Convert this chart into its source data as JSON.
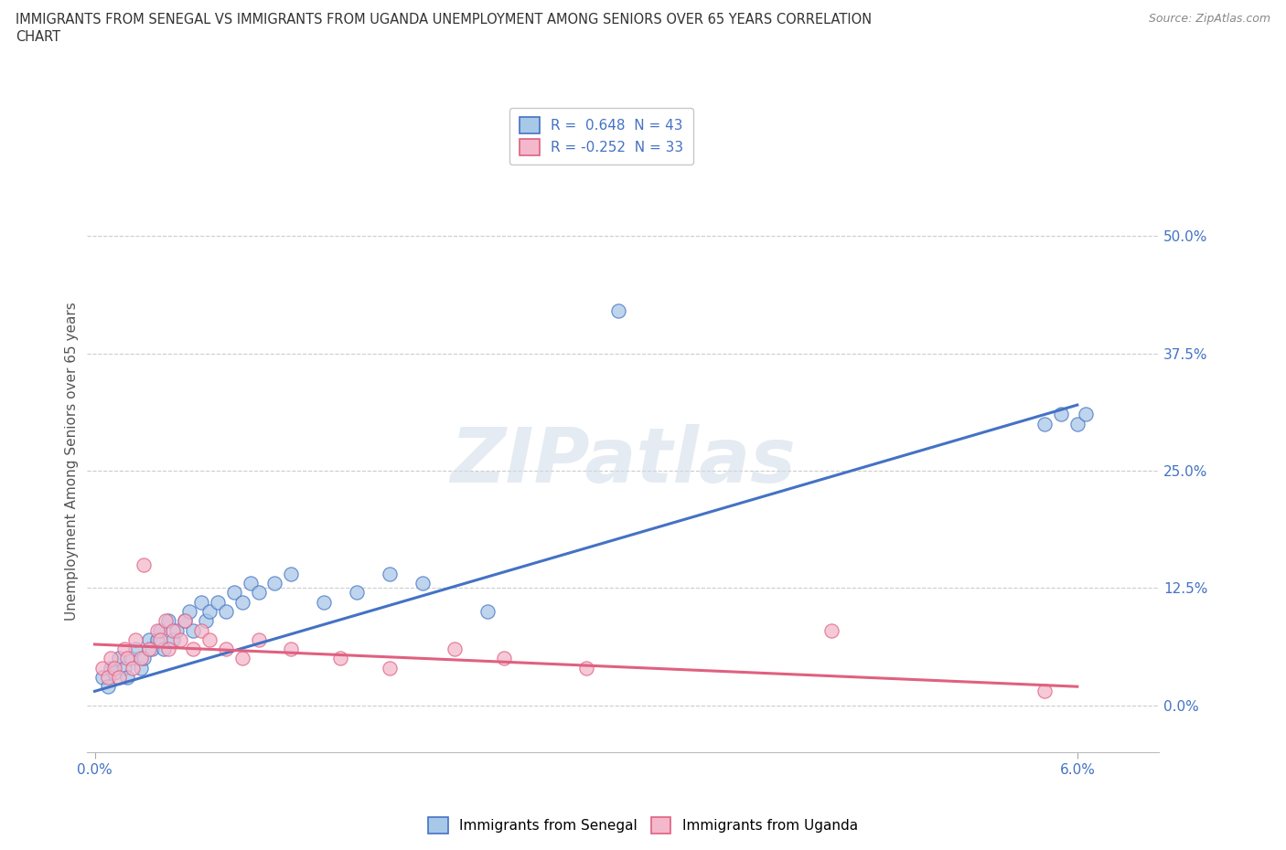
{
  "title_line1": "IMMIGRANTS FROM SENEGAL VS IMMIGRANTS FROM UGANDA UNEMPLOYMENT AMONG SENIORS OVER 65 YEARS CORRELATION",
  "title_line2": "CHART",
  "source": "Source: ZipAtlas.com",
  "ylabel": "Unemployment Among Seniors over 65 years",
  "watermark": "ZIPatlas",
  "legend_r1": "R =  0.648",
  "legend_n1": "N = 43",
  "legend_r2": "R = -0.252",
  "legend_n2": "N = 33",
  "color_senegal_fill": "#a8c8e8",
  "color_senegal_edge": "#4472c4",
  "color_uganda_fill": "#f4b8cc",
  "color_uganda_edge": "#e06080",
  "color_line_senegal": "#4472c4",
  "color_line_uganda": "#e06080",
  "xlim_min": -0.05,
  "xlim_max": 6.5,
  "ylim_min": -5,
  "ylim_max": 57,
  "yticks": [
    0.0,
    12.5,
    25.0,
    37.5,
    50.0
  ],
  "ytick_labels": [
    "0.0%",
    "12.5%",
    "25.0%",
    "37.5%",
    "50.0%"
  ],
  "background_color": "#ffffff",
  "grid_color": "#cccccc",
  "senegal_x": [
    0.05,
    0.08,
    0.1,
    0.12,
    0.15,
    0.18,
    0.2,
    0.22,
    0.25,
    0.28,
    0.3,
    0.33,
    0.35,
    0.38,
    0.4,
    0.42,
    0.45,
    0.48,
    0.5,
    0.55,
    0.58,
    0.6,
    0.65,
    0.68,
    0.7,
    0.75,
    0.8,
    0.85,
    0.9,
    0.95,
    1.0,
    1.1,
    1.2,
    1.4,
    1.6,
    1.8,
    2.0,
    2.4,
    3.2,
    5.8,
    5.9,
    6.0,
    6.05
  ],
  "senegal_y": [
    3.0,
    2.0,
    4.0,
    3.5,
    5.0,
    4.0,
    3.0,
    5.0,
    6.0,
    4.0,
    5.0,
    7.0,
    6.0,
    7.0,
    8.0,
    6.0,
    9.0,
    7.0,
    8.0,
    9.0,
    10.0,
    8.0,
    11.0,
    9.0,
    10.0,
    11.0,
    10.0,
    12.0,
    11.0,
    13.0,
    12.0,
    13.0,
    14.0,
    11.0,
    12.0,
    14.0,
    13.0,
    10.0,
    42.0,
    30.0,
    31.0,
    30.0,
    31.0
  ],
  "uganda_x": [
    0.05,
    0.08,
    0.1,
    0.12,
    0.15,
    0.18,
    0.2,
    0.23,
    0.25,
    0.28,
    0.3,
    0.33,
    0.38,
    0.4,
    0.43,
    0.45,
    0.48,
    0.52,
    0.55,
    0.6,
    0.65,
    0.7,
    0.8,
    0.9,
    1.0,
    1.2,
    1.5,
    1.8,
    2.2,
    2.5,
    3.0,
    4.5,
    5.8
  ],
  "uganda_y": [
    4.0,
    3.0,
    5.0,
    4.0,
    3.0,
    6.0,
    5.0,
    4.0,
    7.0,
    5.0,
    15.0,
    6.0,
    8.0,
    7.0,
    9.0,
    6.0,
    8.0,
    7.0,
    9.0,
    6.0,
    8.0,
    7.0,
    6.0,
    5.0,
    7.0,
    6.0,
    5.0,
    4.0,
    6.0,
    5.0,
    4.0,
    8.0,
    1.5
  ],
  "line_senegal_x0": 0.0,
  "line_senegal_x1": 6.0,
  "line_senegal_y0": 1.5,
  "line_senegal_y1": 32.0,
  "line_uganda_x0": 0.0,
  "line_uganda_x1": 6.0,
  "line_uganda_y0": 6.5,
  "line_uganda_y1": 2.0
}
